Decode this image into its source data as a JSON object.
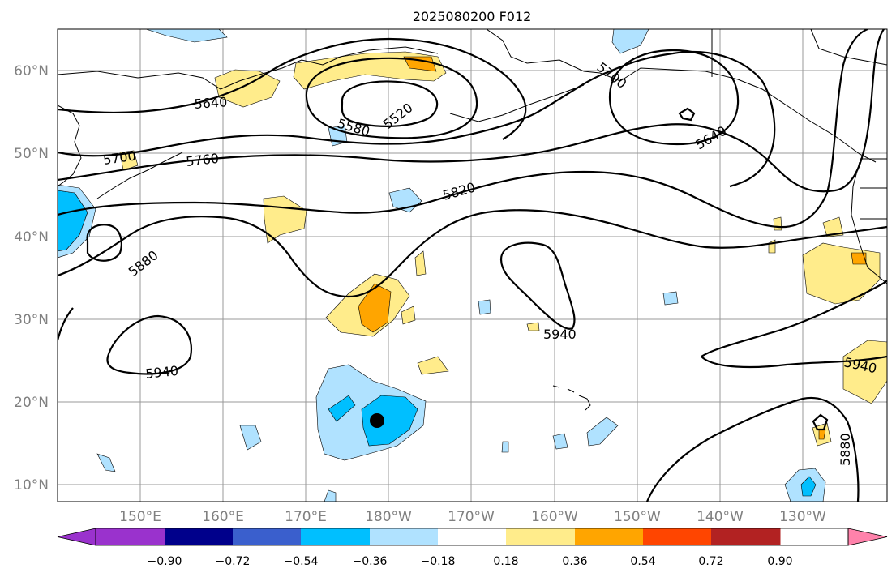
{
  "title": "2025080200 F012",
  "axes": {
    "lat_labels": [
      "60°N",
      "50°N",
      "40°N",
      "30°N",
      "20°N",
      "10°N"
    ],
    "lon_labels": [
      "150°E",
      "160°E",
      "170°E",
      "180°W",
      "170°W",
      "160°W",
      "150°W",
      "140°W",
      "130°W"
    ]
  },
  "contour_labels": [
    "5700",
    "5640",
    "5520",
    "5580",
    "5700",
    "5760",
    "5640",
    "5820",
    "5880",
    "5940",
    "5940",
    "5940",
    "5880"
  ],
  "colorbar": {
    "tick_labels": [
      "−0.90",
      "−0.72",
      "−0.54",
      "−0.36",
      "−0.18",
      "0.18",
      "0.36",
      "0.54",
      "0.72",
      "0.90"
    ],
    "colors": [
      "#9a32cd",
      "#00008b",
      "#3a5fcd",
      "#00bfff",
      "#b0e2ff",
      "#ffffff",
      "#ffec8b",
      "#ffa500",
      "#ff4500",
      "#b22222",
      "#ff82ab"
    ]
  },
  "marker": {
    "type": "storm-center",
    "color": "#000000"
  }
}
